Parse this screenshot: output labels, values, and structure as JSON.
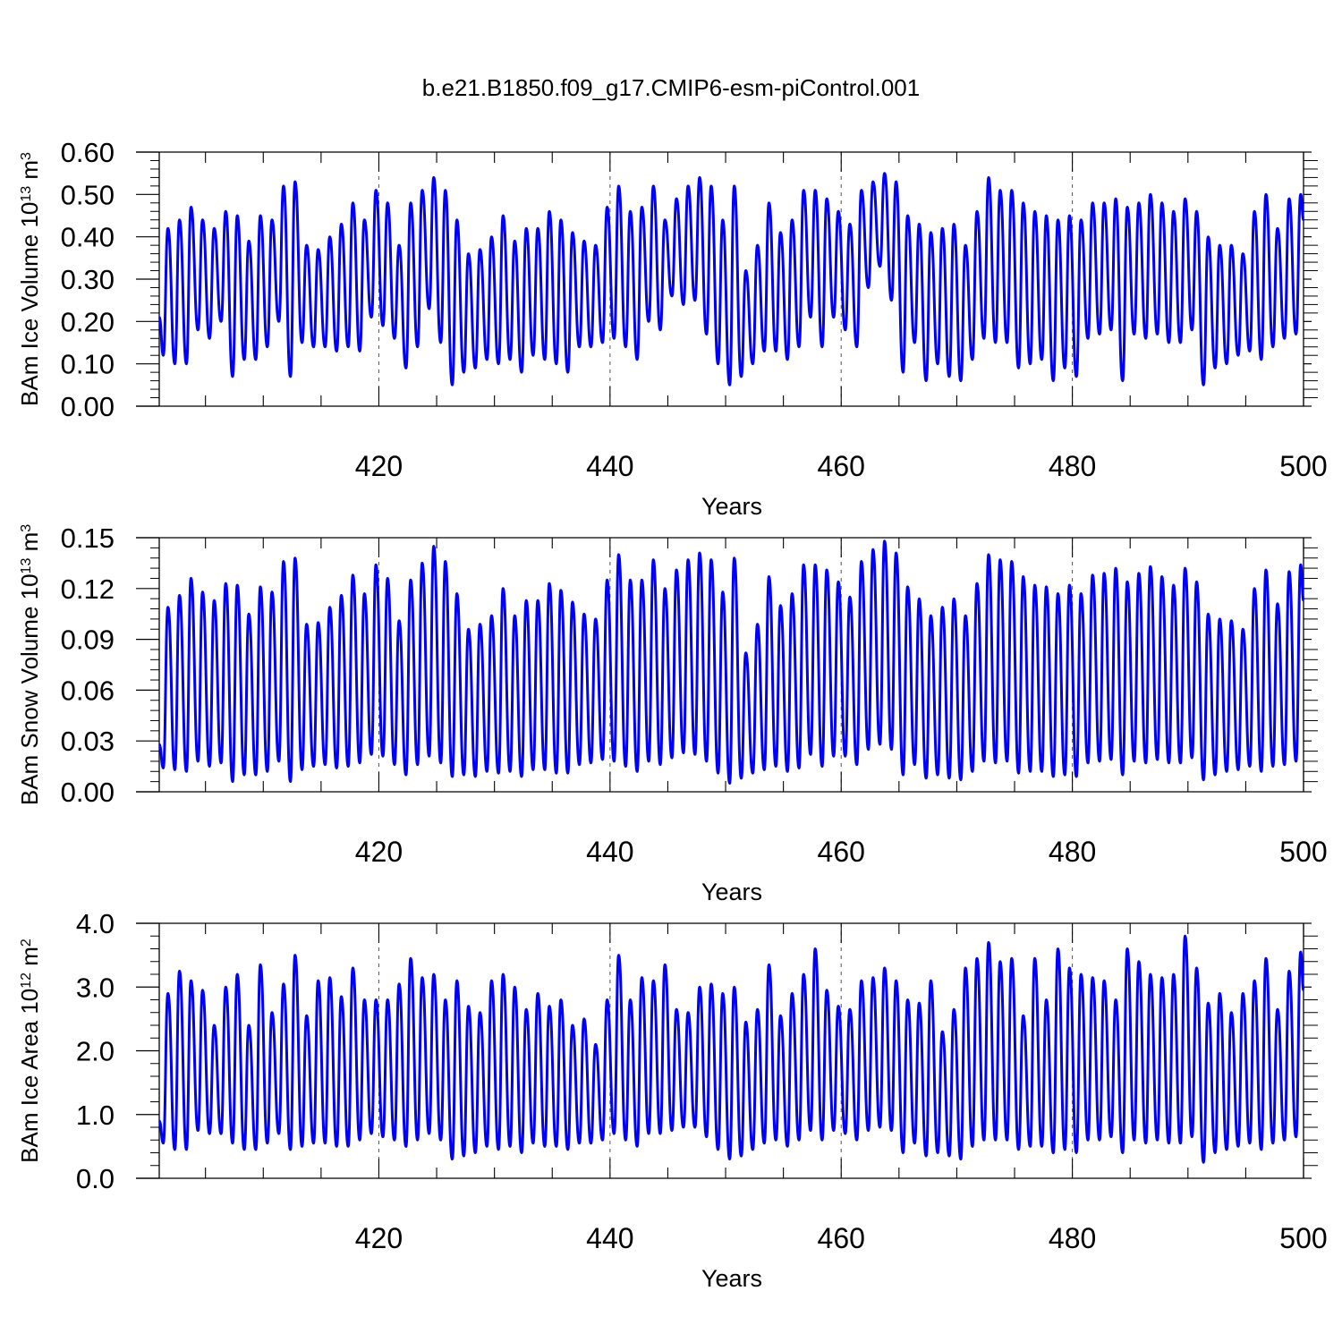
{
  "title": "b.e21.B1850.f09_g17.CMIP6-esm-piControl.001",
  "line_color": "#0000ff",
  "chart_data": [
    {
      "type": "line",
      "ylabel": "BAm Ice Volume",
      "ylabel_scale": "10",
      "ylabel_exp": "13",
      "ylabel_unit": "m",
      "ylabel_unit_exp": "3",
      "xlabel": "Years",
      "xlim": [
        401,
        500
      ],
      "ylim": [
        0,
        0.6
      ],
      "xticks": [
        420,
        440,
        460,
        480,
        500
      ],
      "xtick_labels": [
        "420",
        "440",
        "460",
        "480",
        "500"
      ],
      "yticks": [
        0,
        0.1,
        0.2,
        0.3,
        0.4,
        0.5,
        0.6
      ],
      "ytick_labels": [
        "0.00",
        "0.10",
        "0.20",
        "0.30",
        "0.40",
        "0.50",
        "0.60"
      ],
      "series": [
        {
          "years": [
            401,
            402,
            403,
            404,
            405,
            406,
            407,
            408,
            409,
            410,
            411,
            412,
            413,
            414,
            415,
            416,
            417,
            418,
            419,
            420,
            421,
            422,
            423,
            424,
            425,
            426,
            427,
            428,
            429,
            430,
            431,
            432,
            433,
            434,
            435,
            436,
            437,
            438,
            439,
            440,
            441,
            442,
            443,
            444,
            445,
            446,
            447,
            448,
            449,
            450,
            451,
            452,
            453,
            454,
            455,
            456,
            457,
            458,
            459,
            460,
            461,
            462,
            463,
            464,
            465,
            466,
            467,
            468,
            469,
            470,
            471,
            472,
            473,
            474,
            475,
            476,
            477,
            478,
            479,
            480,
            481,
            482,
            483,
            484,
            485,
            486,
            487,
            488,
            489,
            490,
            491,
            492,
            493,
            494,
            495,
            496,
            497,
            498,
            499
          ],
          "max": [
            0.42,
            0.44,
            0.47,
            0.44,
            0.42,
            0.46,
            0.45,
            0.39,
            0.45,
            0.44,
            0.52,
            0.53,
            0.38,
            0.37,
            0.4,
            0.43,
            0.48,
            0.44,
            0.51,
            0.48,
            0.38,
            0.48,
            0.51,
            0.54,
            0.51,
            0.44,
            0.36,
            0.37,
            0.4,
            0.45,
            0.39,
            0.42,
            0.42,
            0.46,
            0.44,
            0.41,
            0.39,
            0.38,
            0.47,
            0.52,
            0.46,
            0.47,
            0.52,
            0.44,
            0.49,
            0.52,
            0.54,
            0.52,
            0.44,
            0.52,
            0.32,
            0.38,
            0.48,
            0.41,
            0.44,
            0.51,
            0.51,
            0.49,
            0.46,
            0.43,
            0.51,
            0.53,
            0.55,
            0.53,
            0.45,
            0.43,
            0.41,
            0.42,
            0.43,
            0.38,
            0.46,
            0.54,
            0.51,
            0.51,
            0.48,
            0.46,
            0.45,
            0.44,
            0.45,
            0.44,
            0.48,
            0.48,
            0.49,
            0.47,
            0.48,
            0.5,
            0.48,
            0.46,
            0.49,
            0.46,
            0.4,
            0.38,
            0.38,
            0.36,
            0.46,
            0.5,
            0.42,
            0.49,
            0.5
          ],
          "min": [
            0.12,
            0.1,
            0.1,
            0.18,
            0.16,
            0.2,
            0.07,
            0.11,
            0.11,
            0.14,
            0.2,
            0.07,
            0.15,
            0.14,
            0.14,
            0.13,
            0.14,
            0.13,
            0.21,
            0.19,
            0.16,
            0.09,
            0.14,
            0.23,
            0.15,
            0.05,
            0.08,
            0.09,
            0.11,
            0.1,
            0.11,
            0.08,
            0.12,
            0.11,
            0.1,
            0.08,
            0.14,
            0.14,
            0.15,
            0.16,
            0.14,
            0.11,
            0.2,
            0.18,
            0.26,
            0.24,
            0.25,
            0.17,
            0.1,
            0.05,
            0.07,
            0.1,
            0.13,
            0.13,
            0.11,
            0.14,
            0.21,
            0.14,
            0.21,
            0.18,
            0.14,
            0.28,
            0.33,
            0.25,
            0.08,
            0.15,
            0.06,
            0.1,
            0.07,
            0.06,
            0.11,
            0.16,
            0.15,
            0.15,
            0.09,
            0.1,
            0.11,
            0.06,
            0.09,
            0.07,
            0.16,
            0.17,
            0.18,
            0.06,
            0.17,
            0.16,
            0.17,
            0.15,
            0.15,
            0.18,
            0.05,
            0.09,
            0.1,
            0.12,
            0.13,
            0.11,
            0.14,
            0.16,
            0.17
          ],
          "start": 0.21,
          "end": 0.44
        }
      ]
    },
    {
      "type": "line",
      "ylabel": "BAm Snow Volume",
      "ylabel_scale": "10",
      "ylabel_exp": "13",
      "ylabel_unit": "m",
      "ylabel_unit_exp": "3",
      "xlabel": "Years",
      "xlim": [
        401,
        500
      ],
      "ylim": [
        0,
        0.15
      ],
      "xticks": [
        420,
        440,
        460,
        480,
        500
      ],
      "xtick_labels": [
        "420",
        "440",
        "460",
        "480",
        "500"
      ],
      "yticks": [
        0,
        0.03,
        0.06,
        0.09,
        0.12,
        0.15
      ],
      "ytick_labels": [
        "0.00",
        "0.03",
        "0.06",
        "0.09",
        "0.12",
        "0.15"
      ],
      "series": [
        {
          "years": [
            401,
            402,
            403,
            404,
            405,
            406,
            407,
            408,
            409,
            410,
            411,
            412,
            413,
            414,
            415,
            416,
            417,
            418,
            419,
            420,
            421,
            422,
            423,
            424,
            425,
            426,
            427,
            428,
            429,
            430,
            431,
            432,
            433,
            434,
            435,
            436,
            437,
            438,
            439,
            440,
            441,
            442,
            443,
            444,
            445,
            446,
            447,
            448,
            449,
            450,
            451,
            452,
            453,
            454,
            455,
            456,
            457,
            458,
            459,
            460,
            461,
            462,
            463,
            464,
            465,
            466,
            467,
            468,
            469,
            470,
            471,
            472,
            473,
            474,
            475,
            476,
            477,
            478,
            479,
            480,
            481,
            482,
            483,
            484,
            485,
            486,
            487,
            488,
            489,
            490,
            491,
            492,
            493,
            494,
            495,
            496,
            497,
            498,
            499
          ],
          "max": [
            0.109,
            0.116,
            0.126,
            0.118,
            0.113,
            0.123,
            0.122,
            0.105,
            0.121,
            0.118,
            0.136,
            0.138,
            0.099,
            0.1,
            0.109,
            0.116,
            0.128,
            0.117,
            0.134,
            0.126,
            0.101,
            0.125,
            0.135,
            0.145,
            0.136,
            0.117,
            0.096,
            0.099,
            0.104,
            0.12,
            0.104,
            0.113,
            0.113,
            0.123,
            0.119,
            0.112,
            0.105,
            0.102,
            0.125,
            0.14,
            0.125,
            0.125,
            0.137,
            0.12,
            0.131,
            0.137,
            0.141,
            0.137,
            0.118,
            0.138,
            0.082,
            0.099,
            0.127,
            0.11,
            0.117,
            0.134,
            0.134,
            0.131,
            0.124,
            0.115,
            0.136,
            0.143,
            0.148,
            0.141,
            0.121,
            0.114,
            0.104,
            0.109,
            0.114,
            0.104,
            0.123,
            0.14,
            0.137,
            0.136,
            0.127,
            0.122,
            0.121,
            0.117,
            0.122,
            0.117,
            0.128,
            0.129,
            0.132,
            0.124,
            0.129,
            0.133,
            0.127,
            0.122,
            0.132,
            0.124,
            0.105,
            0.102,
            0.101,
            0.096,
            0.12,
            0.131,
            0.111,
            0.13,
            0.134
          ],
          "min": [
            0.014,
            0.013,
            0.012,
            0.018,
            0.015,
            0.017,
            0.006,
            0.01,
            0.01,
            0.012,
            0.018,
            0.006,
            0.013,
            0.015,
            0.016,
            0.014,
            0.015,
            0.017,
            0.022,
            0.021,
            0.016,
            0.01,
            0.016,
            0.021,
            0.017,
            0.009,
            0.01,
            0.009,
            0.012,
            0.011,
            0.012,
            0.009,
            0.013,
            0.013,
            0.011,
            0.011,
            0.016,
            0.017,
            0.019,
            0.018,
            0.015,
            0.012,
            0.018,
            0.016,
            0.02,
            0.023,
            0.022,
            0.018,
            0.011,
            0.005,
            0.008,
            0.011,
            0.013,
            0.015,
            0.012,
            0.014,
            0.022,
            0.015,
            0.021,
            0.021,
            0.016,
            0.025,
            0.028,
            0.025,
            0.01,
            0.016,
            0.008,
            0.01,
            0.008,
            0.007,
            0.012,
            0.018,
            0.017,
            0.018,
            0.011,
            0.012,
            0.012,
            0.009,
            0.01,
            0.009,
            0.017,
            0.018,
            0.019,
            0.01,
            0.018,
            0.017,
            0.019,
            0.017,
            0.017,
            0.02,
            0.007,
            0.01,
            0.012,
            0.013,
            0.015,
            0.012,
            0.015,
            0.016,
            0.018
          ],
          "start": 0.028,
          "end": 0.113
        }
      ]
    },
    {
      "type": "line",
      "ylabel": "BAm Ice Area",
      "ylabel_scale": "10",
      "ylabel_exp": "12",
      "ylabel_unit": "m",
      "ylabel_unit_exp": "2",
      "xlabel": "Years",
      "xlim": [
        401,
        500
      ],
      "ylim": [
        0,
        4.0
      ],
      "xticks": [
        420,
        440,
        460,
        480,
        500
      ],
      "xtick_labels": [
        "420",
        "440",
        "460",
        "480",
        "500"
      ],
      "yticks": [
        0,
        1,
        2,
        3,
        4
      ],
      "ytick_labels": [
        "0.0",
        "1.0",
        "2.0",
        "3.0",
        "4.0"
      ],
      "series": [
        {
          "years": [
            401,
            402,
            403,
            404,
            405,
            406,
            407,
            408,
            409,
            410,
            411,
            412,
            413,
            414,
            415,
            416,
            417,
            418,
            419,
            420,
            421,
            422,
            423,
            424,
            425,
            426,
            427,
            428,
            429,
            430,
            431,
            432,
            433,
            434,
            435,
            436,
            437,
            438,
            439,
            440,
            441,
            442,
            443,
            444,
            445,
            446,
            447,
            448,
            449,
            450,
            451,
            452,
            453,
            454,
            455,
            456,
            457,
            458,
            459,
            460,
            461,
            462,
            463,
            464,
            465,
            466,
            467,
            468,
            469,
            470,
            471,
            472,
            473,
            474,
            475,
            476,
            477,
            478,
            479,
            480,
            481,
            482,
            483,
            484,
            485,
            486,
            487,
            488,
            489,
            490,
            491,
            492,
            493,
            494,
            495,
            496,
            497,
            498,
            499
          ],
          "max": [
            2.9,
            3.25,
            3.1,
            2.95,
            2.4,
            3.0,
            3.2,
            2.4,
            3.35,
            2.6,
            3.05,
            3.5,
            2.55,
            3.1,
            3.15,
            2.85,
            3.3,
            2.8,
            2.8,
            2.8,
            3.05,
            3.45,
            3.15,
            3.2,
            2.8,
            3.1,
            2.7,
            2.6,
            3.1,
            3.2,
            3.0,
            2.65,
            2.9,
            2.7,
            2.8,
            2.4,
            2.5,
            2.1,
            2.8,
            3.5,
            2.8,
            3.15,
            3.1,
            3.35,
            2.65,
            2.6,
            3.0,
            3.05,
            2.9,
            3.0,
            2.45,
            2.65,
            3.35,
            2.55,
            2.9,
            3.2,
            3.6,
            2.95,
            2.7,
            2.65,
            3.1,
            3.15,
            3.3,
            3.1,
            2.8,
            2.75,
            3.1,
            2.3,
            2.65,
            3.3,
            3.45,
            3.7,
            3.4,
            3.45,
            2.55,
            3.45,
            2.8,
            3.6,
            3.3,
            3.2,
            3.15,
            3.1,
            2.8,
            3.6,
            3.4,
            3.2,
            3.15,
            3.2,
            3.8,
            3.3,
            2.75,
            2.9,
            2.6,
            2.9,
            3.1,
            3.45,
            2.65,
            3.25,
            3.55
          ],
          "min": [
            0.55,
            0.45,
            0.45,
            0.75,
            0.7,
            0.7,
            0.55,
            0.45,
            0.45,
            0.55,
            0.7,
            0.45,
            0.5,
            0.55,
            0.55,
            0.5,
            0.5,
            0.6,
            0.7,
            0.65,
            0.6,
            0.5,
            0.6,
            0.7,
            0.6,
            0.3,
            0.35,
            0.4,
            0.5,
            0.45,
            0.5,
            0.4,
            0.55,
            0.5,
            0.5,
            0.45,
            0.55,
            0.55,
            0.6,
            0.7,
            0.6,
            0.5,
            0.7,
            0.7,
            0.75,
            0.8,
            0.8,
            0.65,
            0.45,
            0.3,
            0.35,
            0.45,
            0.55,
            0.6,
            0.5,
            0.6,
            0.75,
            0.6,
            0.75,
            0.7,
            0.6,
            0.75,
            0.8,
            0.75,
            0.4,
            0.55,
            0.35,
            0.4,
            0.35,
            0.3,
            0.5,
            0.6,
            0.6,
            0.6,
            0.45,
            0.5,
            0.5,
            0.4,
            0.45,
            0.4,
            0.6,
            0.6,
            0.65,
            0.4,
            0.6,
            0.55,
            0.6,
            0.55,
            0.55,
            0.65,
            0.25,
            0.4,
            0.45,
            0.5,
            0.55,
            0.45,
            0.55,
            0.6,
            0.65
          ],
          "start": 0.9,
          "end": 2.95
        }
      ]
    }
  ]
}
